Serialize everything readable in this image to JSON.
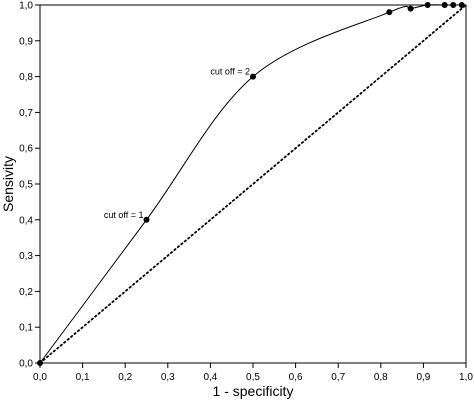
{
  "chart_data": {
    "type": "line",
    "title": "",
    "xlabel": "1 - specificity",
    "ylabel": "Sensivity",
    "xlim": [
      0,
      1
    ],
    "ylim": [
      0,
      1
    ],
    "x_ticks": [
      "0,0",
      "0,1",
      "0,2",
      "0,3",
      "0,4",
      "0,5",
      "0,6",
      "0,7",
      "0,8",
      "0,9",
      "1,0"
    ],
    "y_ticks": [
      "0,0",
      "0,1",
      "0,2",
      "0,3",
      "0,4",
      "0,5",
      "0,6",
      "0,7",
      "0,8",
      "0,9",
      "1,0"
    ],
    "grid": false,
    "series": [
      {
        "style": "solid",
        "x": [
          0.0,
          0.25,
          0.5,
          0.82,
          0.87,
          0.91,
          0.95,
          0.97,
          0.99
        ],
        "y": [
          0.0,
          0.4,
          0.8,
          0.98,
          0.99,
          1.0,
          1.0,
          1.0,
          1.0
        ],
        "markers": true
      },
      {
        "style": "dotted",
        "x": [
          0.0,
          1.0
        ],
        "y": [
          0.0,
          1.0
        ],
        "markers": false
      }
    ],
    "annotations": [
      {
        "text": "cut off = 1",
        "x": 0.25,
        "y": 0.4
      },
      {
        "text": "cut off = 2",
        "x": 0.5,
        "y": 0.8
      }
    ]
  }
}
